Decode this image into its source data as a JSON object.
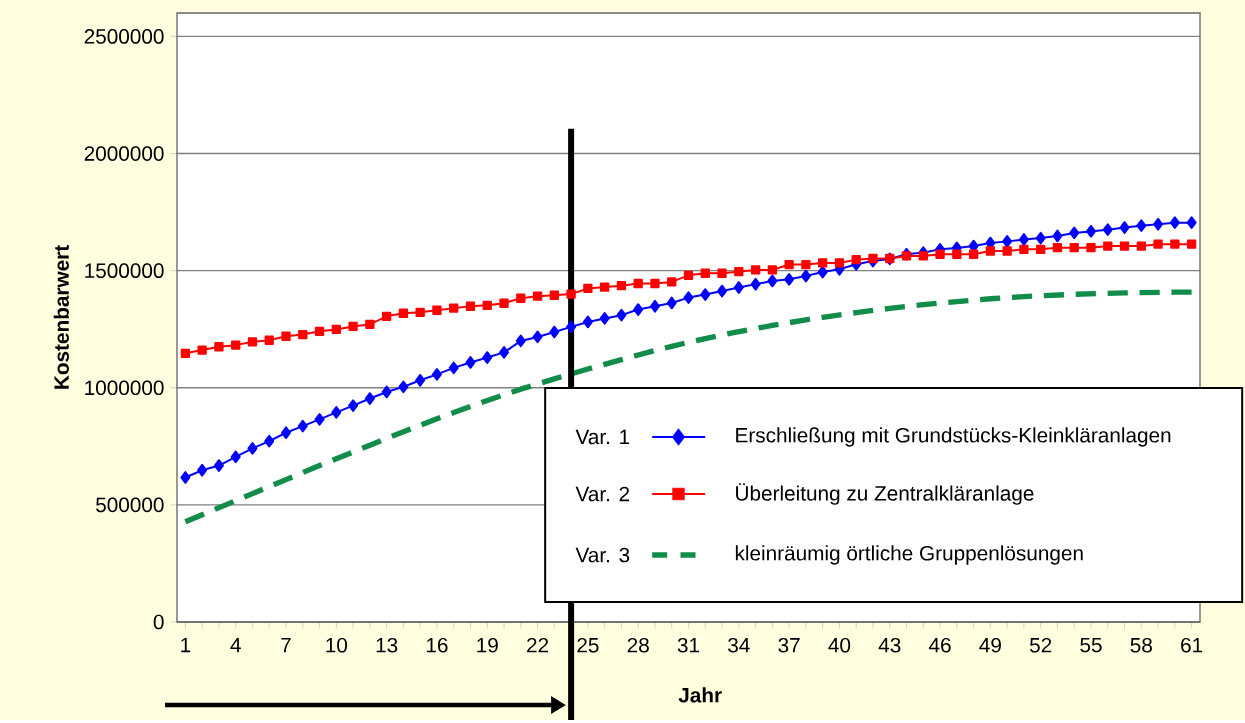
{
  "chart_data": {
    "type": "line",
    "xlabel": "Jahr",
    "ylabel": "Kostenbarwert",
    "x": [
      1,
      2,
      3,
      4,
      5,
      6,
      7,
      8,
      9,
      10,
      11,
      12,
      13,
      14,
      15,
      16,
      17,
      18,
      19,
      20,
      21,
      22,
      23,
      24,
      25,
      26,
      27,
      28,
      29,
      30,
      31,
      32,
      33,
      34,
      35,
      36,
      37,
      38,
      39,
      40,
      41,
      42,
      43,
      44,
      45,
      46,
      47,
      48,
      49,
      50,
      51,
      52,
      53,
      54,
      55,
      56,
      57,
      58,
      59,
      60,
      61
    ],
    "xlim": [
      0.5,
      61.5
    ],
    "xticks": [
      1,
      4,
      7,
      10,
      13,
      16,
      19,
      22,
      25,
      28,
      31,
      34,
      37,
      40,
      43,
      46,
      49,
      52,
      55,
      58,
      61
    ],
    "ylim": [
      0,
      2600000
    ],
    "yticks": [
      0,
      500000,
      1000000,
      1500000,
      2000000,
      2500000
    ],
    "grid": "y",
    "legend": "bottom right",
    "annotations": [
      "Var. 1",
      "Var. 2",
      "Var. 3"
    ],
    "ref_lines": [
      {
        "axis": "x",
        "value": 24,
        "color": "#000000"
      }
    ],
    "series": [
      {
        "name": "Erschließung mit Grundstücks-Kleinkläranlagen",
        "color": "#0000ff",
        "marker": "diamond",
        "line_style": "solid",
        "values": [
          617000,
          648000,
          668000,
          705000,
          741000,
          772000,
          808000,
          836000,
          865000,
          895000,
          924000,
          954000,
          982000,
          1004000,
          1032000,
          1057000,
          1085000,
          1108000,
          1129000,
          1151000,
          1200000,
          1217000,
          1238000,
          1260000,
          1281000,
          1296000,
          1310000,
          1334000,
          1348000,
          1362000,
          1385000,
          1398000,
          1413000,
          1428000,
          1442000,
          1456000,
          1463000,
          1477000,
          1494000,
          1506000,
          1527000,
          1541000,
          1550000,
          1570000,
          1577000,
          1591000,
          1597000,
          1605000,
          1618000,
          1625000,
          1633000,
          1639000,
          1648000,
          1661000,
          1668000,
          1675000,
          1684000,
          1692000,
          1698000,
          1705000,
          1705000
        ]
      },
      {
        "name": "Überleitung zu Zentralkläranlage",
        "color": "#ff0000",
        "marker": "square",
        "line_style": "solid",
        "values": [
          1147000,
          1161000,
          1175000,
          1182000,
          1196000,
          1203000,
          1220000,
          1227000,
          1241000,
          1249000,
          1262000,
          1271000,
          1305000,
          1318000,
          1322000,
          1331000,
          1340000,
          1348000,
          1352000,
          1361000,
          1382000,
          1391000,
          1395000,
          1400000,
          1424000,
          1430000,
          1436000,
          1445000,
          1445000,
          1452000,
          1480000,
          1489000,
          1489000,
          1496000,
          1503000,
          1503000,
          1526000,
          1526000,
          1533000,
          1533000,
          1547000,
          1552000,
          1552000,
          1563000,
          1563000,
          1570000,
          1570000,
          1570000,
          1584000,
          1584000,
          1591000,
          1591000,
          1598000,
          1598000,
          1598000,
          1605000,
          1605000,
          1605000,
          1613000,
          1613000,
          1613000
        ]
      },
      {
        "name": "kleinräumig örtliche Gruppenlösungen",
        "color": "#128c4a",
        "marker": "none",
        "line_style": "dashed",
        "values": [
          428000,
          458000,
          488000,
          518000,
          548000,
          578000,
          608000,
          638000,
          668000,
          697000,
          726000,
          755000,
          784000,
          812000,
          840000,
          868000,
          894000,
          920000,
          946000,
          970000,
          994000,
          1016000,
          1038000,
          1059000,
          1080000,
          1100000,
          1120000,
          1140000,
          1159000,
          1177000,
          1194000,
          1210000,
          1225000,
          1240000,
          1253000,
          1266000,
          1278000,
          1290000,
          1301000,
          1311000,
          1321000,
          1330000,
          1339000,
          1347000,
          1355000,
          1362000,
          1368000,
          1374000,
          1380000,
          1385000,
          1389000,
          1393000,
          1396000,
          1399000,
          1401000,
          1403000,
          1405000,
          1406000,
          1407000,
          1408000,
          1408000
        ]
      }
    ]
  }
}
